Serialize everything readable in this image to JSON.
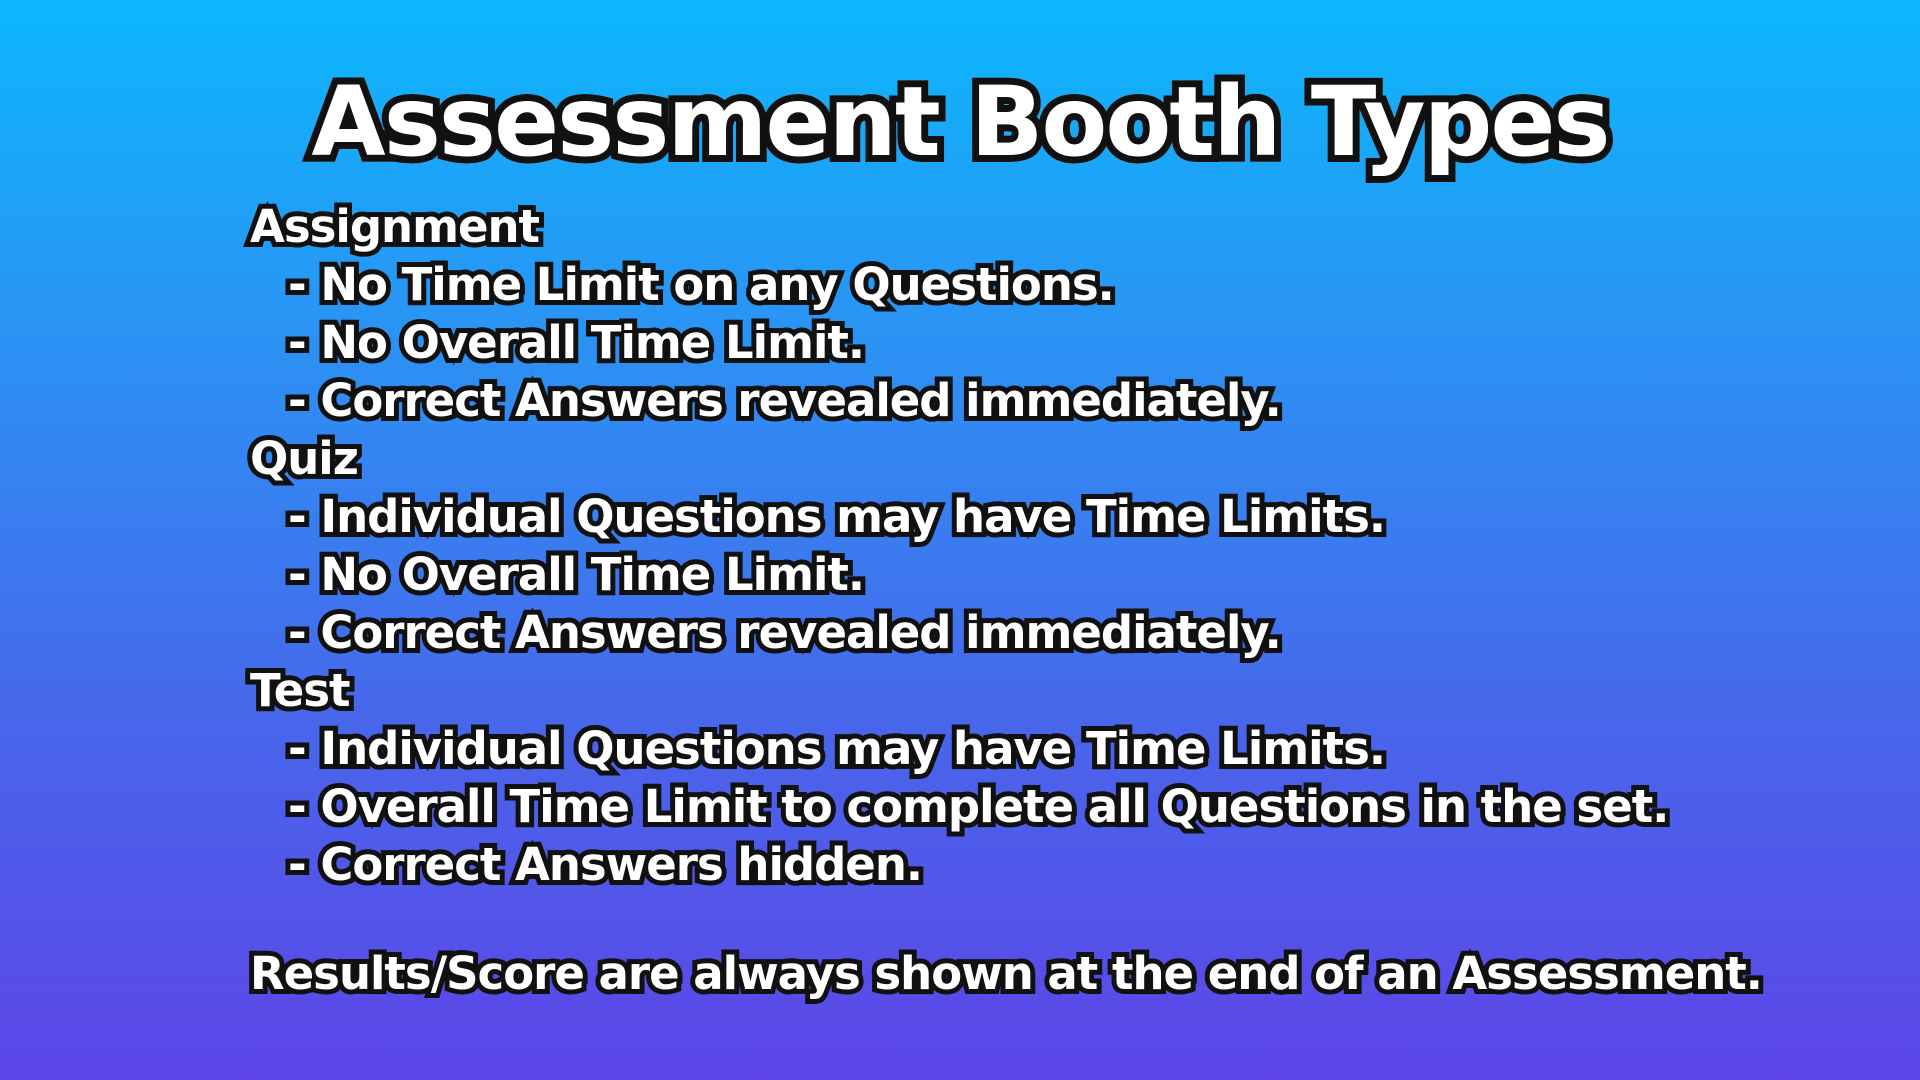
{
  "title": "Assessment Booth Types",
  "sections": [
    {
      "heading": "Assignment",
      "items": [
        "- No Time Limit on any Questions.",
        "- No Overall Time Limit.",
        "- Correct Answers revealed immediately."
      ]
    },
    {
      "heading": "Quiz",
      "items": [
        "- Individual Questions may have Time Limits.",
        "- No Overall Time Limit.",
        "- Correct Answers revealed immediately."
      ]
    },
    {
      "heading": "Test",
      "items": [
        "- Individual Questions may have Time Limits.",
        "- Overall Time Limit to complete all Questions in the set.",
        "- Correct Answers hidden."
      ]
    }
  ],
  "footer": "Results/Score are always shown at the end of an Assessment.",
  "colors": {
    "background_top": "#0cb7fc",
    "background_bottom": "#5d45e8",
    "text_fill": "#ffffff",
    "text_outline": "#111111"
  }
}
